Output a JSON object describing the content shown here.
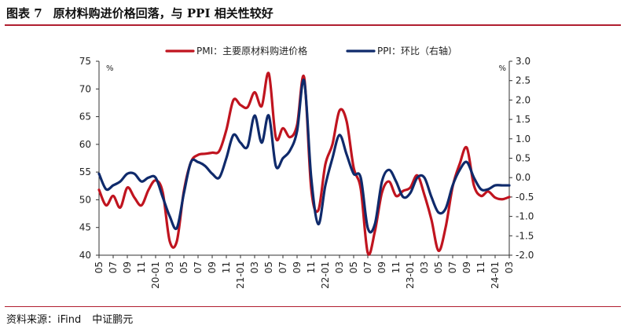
{
  "header": {
    "figure_number": "图表 7",
    "title": "原材料购进价格回落，与 PPI 相关性较好"
  },
  "footer": {
    "source": "资料来源：iFind",
    "org": "中证鹏元"
  },
  "colors": {
    "rule": "#b01e2f",
    "pmi": "#c0141f",
    "ppi": "#0f2a6b"
  },
  "chart_data": {
    "type": "line",
    "title": "原材料购进价格回落，与 PPI 相关性较好",
    "left_axis": {
      "unit": "%",
      "ylim": [
        40,
        75
      ],
      "ticks": [
        40,
        45,
        50,
        55,
        60,
        65,
        70,
        75
      ]
    },
    "right_axis": {
      "unit": "%",
      "ylim": [
        -2.0,
        3.0
      ],
      "ticks": [
        "-2.0",
        "-1.5",
        "-1.0",
        "-0.5",
        "0.0",
        "0.5",
        "1.0",
        "1.5",
        "2.0",
        "2.5",
        "3.0"
      ]
    },
    "x": [
      "2019-05",
      "2019-06",
      "2019-07",
      "2019-08",
      "2019-09",
      "2019-10",
      "2019-11",
      "2019-12",
      "2020-01",
      "2020-02",
      "2020-03",
      "2020-04",
      "2020-05",
      "2020-06",
      "2020-07",
      "2020-08",
      "2020-09",
      "2020-10",
      "2020-11",
      "2020-12",
      "2021-01",
      "2021-02",
      "2021-03",
      "2021-04",
      "2021-05",
      "2021-06",
      "2021-07",
      "2021-08",
      "2021-09",
      "2021-10",
      "2021-11",
      "2021-12",
      "2022-01",
      "2022-02",
      "2022-03",
      "2022-04",
      "2022-05",
      "2022-06",
      "2022-07",
      "2022-08",
      "2022-09",
      "2022-10",
      "2022-11",
      "2022-12",
      "2023-01",
      "2023-02",
      "2023-03",
      "2023-04",
      "2023-05",
      "2023-06",
      "2023-07",
      "2023-08",
      "2023-09",
      "2023-10",
      "2023-11",
      "2023-12",
      "2024-01",
      "2024-02",
      "2024-03"
    ],
    "x_tick_labels": [
      "05",
      "07",
      "09",
      "11",
      "20-01",
      "03",
      "05",
      "07",
      "09",
      "11",
      "21-01",
      "03",
      "05",
      "07",
      "09",
      "11",
      "22-01",
      "03",
      "05",
      "07",
      "09",
      "11",
      "23-01",
      "03",
      "05",
      "07",
      "09",
      "11",
      "24-01",
      "03"
    ],
    "legend": {
      "position": "top"
    },
    "series": [
      {
        "name": "PMI：主要原材料购进价格",
        "axis": "left",
        "values": [
          51.8,
          49.0,
          50.7,
          48.6,
          52.2,
          50.4,
          49.0,
          51.8,
          53.5,
          51.4,
          42.5,
          42.5,
          51.6,
          56.8,
          58.1,
          58.3,
          58.5,
          58.8,
          62.6,
          68.0,
          67.1,
          66.7,
          69.4,
          66.9,
          72.8,
          61.2,
          62.9,
          61.3,
          63.5,
          72.1,
          52.0,
          48.1,
          56.4,
          60.0,
          66.1,
          64.2,
          55.8,
          52.0,
          40.4,
          44.3,
          51.3,
          53.3,
          50.7,
          51.6,
          52.2,
          54.4,
          50.9,
          46.4,
          40.8,
          45.0,
          52.4,
          56.5,
          59.4,
          52.6,
          50.7,
          51.5,
          50.4,
          50.1,
          50.5
        ]
      },
      {
        "name": "PPI：环比（右轴）",
        "axis": "right",
        "values": [
          0.1,
          -0.3,
          -0.2,
          -0.1,
          0.1,
          0.1,
          -0.1,
          0.0,
          0.0,
          -0.5,
          -1.0,
          -1.3,
          -0.4,
          0.4,
          0.4,
          0.3,
          0.1,
          0.0,
          0.5,
          1.1,
          0.9,
          0.8,
          1.6,
          0.9,
          1.6,
          0.3,
          0.5,
          0.7,
          1.2,
          2.5,
          0.0,
          -1.2,
          -0.2,
          0.5,
          1.1,
          0.6,
          0.1,
          0.0,
          -1.3,
          -1.2,
          -0.1,
          0.2,
          -0.1,
          -0.5,
          -0.4,
          0.0,
          0.0,
          -0.5,
          -0.9,
          -0.8,
          -0.2,
          0.2,
          0.4,
          0.0,
          -0.3,
          -0.3,
          -0.2,
          -0.2,
          -0.2
        ]
      }
    ]
  }
}
